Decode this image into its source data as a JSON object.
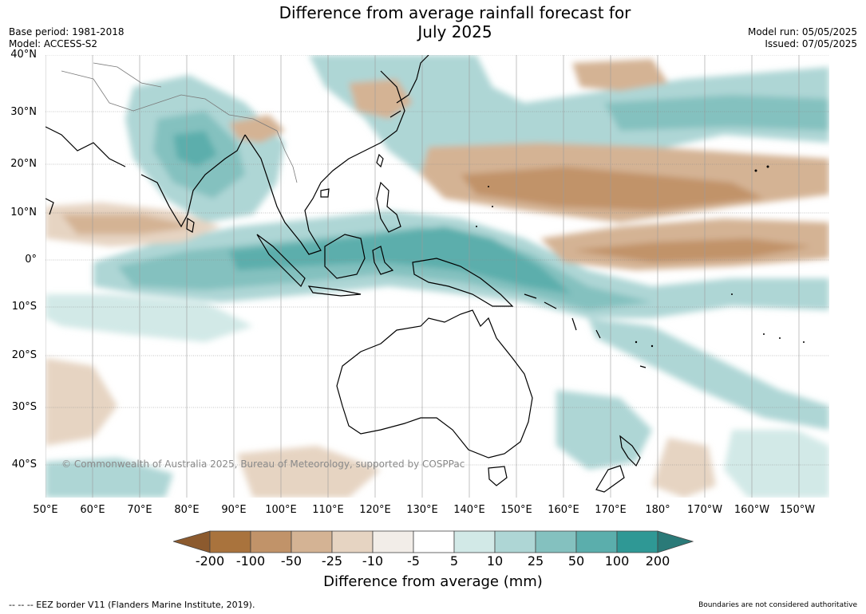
{
  "title_line1": "Difference from average rainfall forecast for",
  "title_line2": "July 2025",
  "base_period": "Base period: 1981-2018",
  "model": "Model: ACCESS-S2",
  "model_run": "Model run: 05/05/2025",
  "issued": "Issued: 07/05/2025",
  "lat_labels": [
    "40°N",
    "30°N",
    "20°N",
    "10°N",
    "0°",
    "10°S",
    "20°S",
    "30°S",
    "40°S"
  ],
  "lon_labels": [
    "50°E",
    "60°E",
    "70°E",
    "80°E",
    "90°E",
    "100°E",
    "110°E",
    "120°E",
    "130°E",
    "140°E",
    "150°E",
    "160°E",
    "170°E",
    "180°",
    "170°W",
    "160°W",
    "150°W"
  ],
  "copyright": "© Commonwealth of Australia 2025, Bureau of Meteorology, supported by COSPPac",
  "colorbar": {
    "title": "Difference from average (mm)",
    "tick_labels": [
      "-200",
      "-100",
      "-50",
      "-25",
      "-10",
      "-5",
      "5",
      "10",
      "25",
      "50",
      "100",
      "200"
    ],
    "colors": [
      "#8c5a2e",
      "#a9733d",
      "#c19369",
      "#d4b394",
      "#e6d4c2",
      "#f2ede8",
      "#ffffff",
      "#d2e9e7",
      "#aed6d5",
      "#84c1bf",
      "#5baeac",
      "#2f9895",
      "#2a7a78"
    ]
  },
  "footer_left": "--  --  -- EEZ border V11 (Flanders Marine Institute, 2019).",
  "footer_right": "Boundaries are not considered authoritative"
}
